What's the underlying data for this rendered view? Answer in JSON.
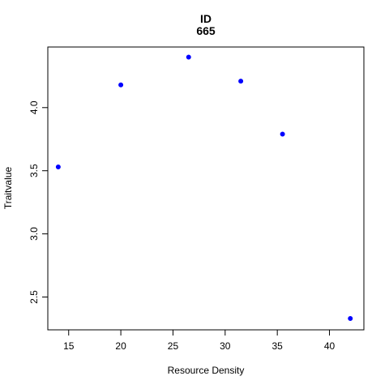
{
  "chart_data": {
    "type": "scatter",
    "title": "ID",
    "subtitle": "665",
    "xlabel": "Resource Density",
    "ylabel": "Traitvalue",
    "xlim": [
      13,
      43.3
    ],
    "ylim": [
      2.24,
      4.48
    ],
    "x_ticks": [
      15,
      20,
      25,
      30,
      35,
      40
    ],
    "y_ticks": [
      2.5,
      3.0,
      3.5,
      4.0
    ],
    "x_tick_labels": [
      "15",
      "20",
      "25",
      "30",
      "35",
      "40"
    ],
    "y_tick_labels": [
      "2.5",
      "3.0",
      "3.5",
      "4.0"
    ],
    "point_color": "#0000ff",
    "grid": false,
    "legend": "none",
    "points": [
      {
        "x": 14.0,
        "y": 3.53
      },
      {
        "x": 20.0,
        "y": 4.18
      },
      {
        "x": 26.5,
        "y": 4.4
      },
      {
        "x": 31.5,
        "y": 4.21
      },
      {
        "x": 35.5,
        "y": 3.79
      },
      {
        "x": 42.0,
        "y": 2.33
      }
    ]
  }
}
